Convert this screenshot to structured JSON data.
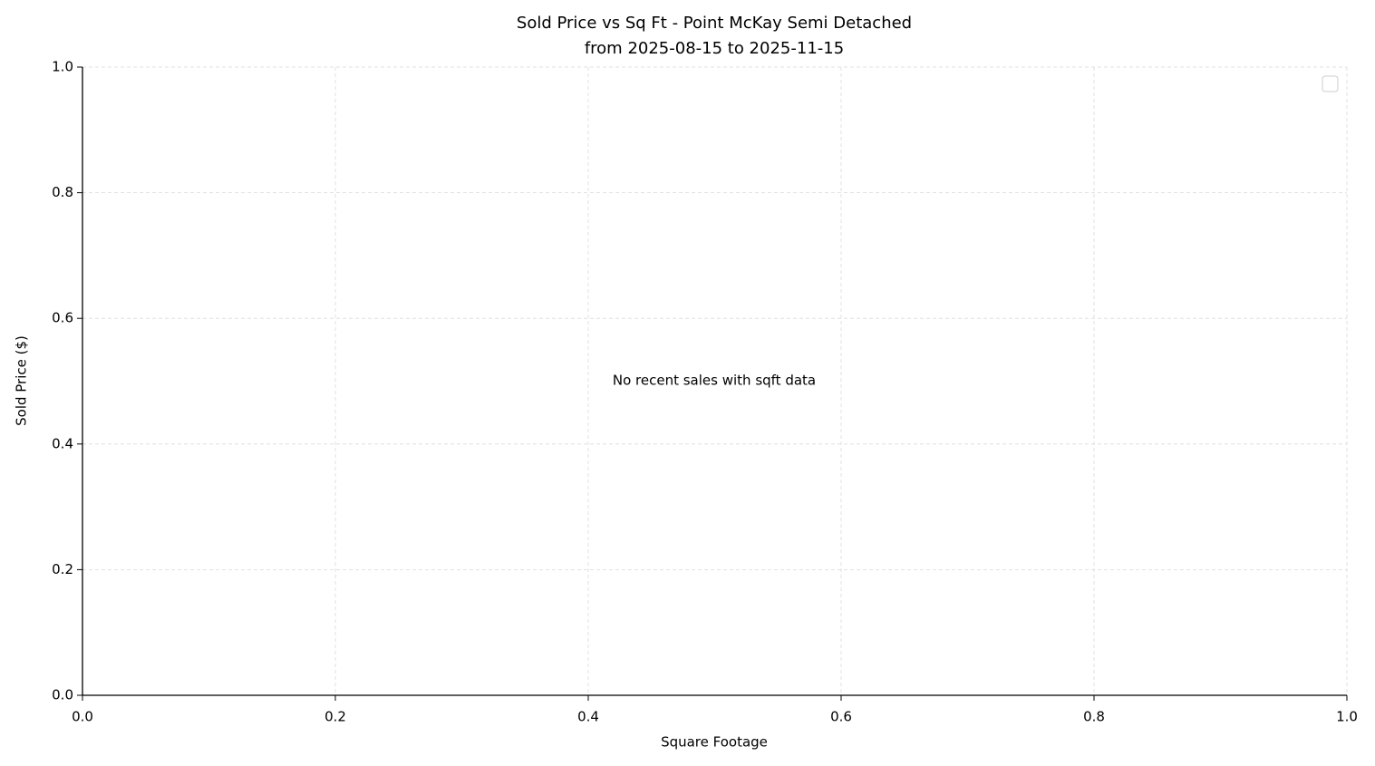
{
  "chart_data": {
    "type": "scatter",
    "title": "Sold Price vs Sq Ft - Point McKay Semi Detached",
    "subtitle": "from 2025-08-15 to 2025-11-15",
    "x_label": "Square Footage",
    "y_label": "Sold Price ($)",
    "annotation": "No recent sales with sqft data",
    "xlim": [
      0,
      1
    ],
    "ylim": [
      0,
      1
    ],
    "xticks": [
      {
        "value": 0,
        "label": "0.0"
      },
      0.2,
      0.4,
      0.6,
      0.8,
      {
        "value": 1,
        "label": "1.0"
      }
    ],
    "yticks": [
      {
        "value": 0,
        "label": "0.0"
      },
      0.2,
      0.4,
      0.6,
      0.8,
      {
        "value": 1,
        "label": "1.0"
      }
    ],
    "grid": true,
    "legend": "upper right"
  }
}
